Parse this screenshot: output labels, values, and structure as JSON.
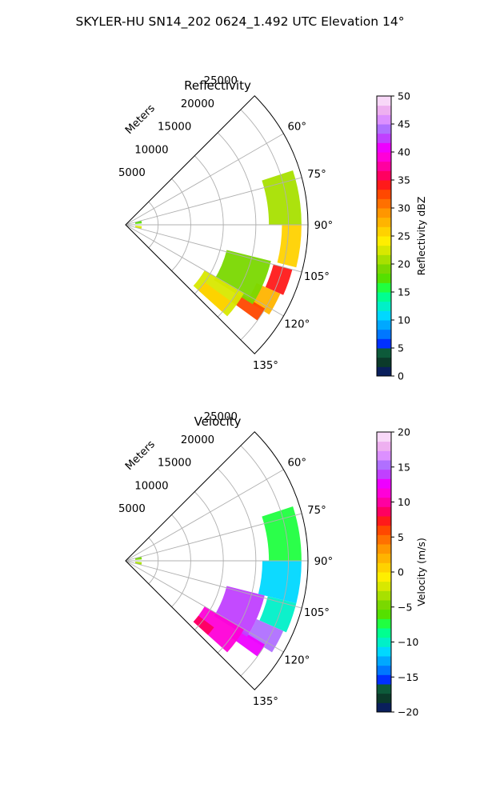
{
  "figure_title": "SKYLER-HU  SN14_202  0624_1.492 UTC Elevation 14°",
  "range_axis_label": "Meters",
  "chart_data": [
    {
      "type": "heatmap",
      "subtype": "radar-ppi-sector",
      "title": "Reflectivity",
      "theta_ticks": [
        60,
        75,
        90,
        105,
        120,
        135
      ],
      "theta_tick_labels": [
        "60°",
        "75°",
        "90°",
        "105°",
        "120°",
        "135°"
      ],
      "theta_range_deg": [
        45,
        135
      ],
      "r_ticks": [
        5000,
        10000,
        15000,
        20000,
        25000
      ],
      "r_tick_labels": [
        "5000",
        "10000",
        "15000",
        "20000",
        "25000"
      ],
      "r_max": 28000,
      "grid": true,
      "colorbar": {
        "label": "Reflectivity dBZ",
        "min": 0,
        "max": 50,
        "ticks": [
          0,
          5,
          10,
          15,
          20,
          25,
          30,
          35,
          40,
          45,
          50
        ],
        "tick_labels": [
          "0",
          "5",
          "10",
          "15",
          "20",
          "25",
          "30",
          "35",
          "40",
          "45",
          "50"
        ],
        "colors": [
          "#0a1f5c",
          "#0b3a2a",
          "#0d5a3a",
          "#0030ff",
          "#0077ff",
          "#00a8ff",
          "#00d8ff",
          "#00f0c8",
          "#00ff90",
          "#20ff40",
          "#55e000",
          "#7ad800",
          "#a8e000",
          "#d8e800",
          "#ffee00",
          "#ffd200",
          "#ffb400",
          "#ff9600",
          "#ff7000",
          "#ff4800",
          "#ff1a1a",
          "#ff0060",
          "#ff00a0",
          "#ff00d8",
          "#ee00ff",
          "#c040ff",
          "#b070ff",
          "#dc90ff",
          "#eeb0f0",
          "#f8d8f8"
        ]
      },
      "echo_regions": [
        {
          "r": [
            22000,
            27000
          ],
          "az": [
            72,
            90
          ],
          "dBZ": 20
        },
        {
          "r": [
            24000,
            27000
          ],
          "az": [
            90,
            104
          ],
          "dBZ": 25
        },
        {
          "r": [
            23500,
            26500
          ],
          "az": [
            105,
            114
          ],
          "dBZ": 34
        },
        {
          "r": [
            22000,
            26000
          ],
          "az": [
            114,
            122
          ],
          "dBZ": 28
        },
        {
          "r": [
            20000,
            25000
          ],
          "az": [
            121,
            126
          ],
          "dBZ": 32
        },
        {
          "r": [
            16000,
            23000
          ],
          "az": [
            104,
            122
          ],
          "dBZ": 19
        },
        {
          "r": [
            14000,
            21000
          ],
          "az": [
            120,
            132
          ],
          "dBZ": 22
        },
        {
          "r": [
            15000,
            20000
          ],
          "az": [
            126,
            132
          ],
          "dBZ": 26
        },
        {
          "r": [
            1500,
            2500
          ],
          "az": [
            75,
            85
          ],
          "dBZ": 18
        },
        {
          "r": [
            1500,
            2500
          ],
          "az": [
            95,
            105
          ],
          "dBZ": 22
        }
      ]
    },
    {
      "type": "heatmap",
      "subtype": "radar-ppi-sector",
      "title": "Velocity",
      "theta_ticks": [
        60,
        75,
        90,
        105,
        120,
        135
      ],
      "theta_tick_labels": [
        "60°",
        "75°",
        "90°",
        "105°",
        "120°",
        "135°"
      ],
      "theta_range_deg": [
        45,
        135
      ],
      "r_ticks": [
        5000,
        10000,
        15000,
        20000,
        25000
      ],
      "r_tick_labels": [
        "5000",
        "10000",
        "15000",
        "20000",
        "25000"
      ],
      "r_max": 28000,
      "grid": true,
      "colorbar": {
        "label": "Velocity (m/s)",
        "min": -20,
        "max": 20,
        "ticks": [
          -20,
          -15,
          -10,
          -5,
          0,
          5,
          10,
          15,
          20
        ],
        "tick_labels": [
          "−20",
          "−15",
          "−10",
          "−5",
          "0",
          "5",
          "10",
          "15",
          "20"
        ],
        "colors": [
          "#0a1f5c",
          "#0b3a2a",
          "#0d5a3a",
          "#0030ff",
          "#0077ff",
          "#00a8ff",
          "#00d8ff",
          "#00f0c8",
          "#00ff90",
          "#20ff40",
          "#55e000",
          "#7ad800",
          "#a8e000",
          "#d8e800",
          "#ffee00",
          "#ffd200",
          "#ffb400",
          "#ff9600",
          "#ff7000",
          "#ff4800",
          "#ff1a1a",
          "#ff0060",
          "#ff00a0",
          "#ff00d8",
          "#ee00ff",
          "#c040ff",
          "#b070ff",
          "#dc90ff",
          "#eeb0f0",
          "#f8d8f8"
        ]
      },
      "echo_regions": [
        {
          "r": [
            22000,
            27000
          ],
          "az": [
            72,
            90
          ],
          "velocity": -8
        },
        {
          "r": [
            21000,
            27000
          ],
          "az": [
            90,
            104
          ],
          "velocity": -11
        },
        {
          "r": [
            22500,
            27000
          ],
          "az": [
            104,
            114
          ],
          "velocity": -10
        },
        {
          "r": [
            22000,
            26500
          ],
          "az": [
            114,
            122
          ],
          "velocity": 15
        },
        {
          "r": [
            20000,
            25000
          ],
          "az": [
            121,
            126
          ],
          "velocity": 12
        },
        {
          "r": [
            16000,
            22000
          ],
          "az": [
            104,
            122
          ],
          "velocity": 14
        },
        {
          "r": [
            14000,
            21000
          ],
          "az": [
            120,
            132
          ],
          "velocity": 11
        },
        {
          "r": [
            14000,
            17000
          ],
          "az": [
            127,
            132
          ],
          "velocity": 9
        },
        {
          "r": [
            1500,
            2500
          ],
          "az": [
            75,
            85
          ],
          "velocity": -5
        },
        {
          "r": [
            1500,
            2500
          ],
          "az": [
            95,
            105
          ],
          "velocity": -4
        }
      ]
    }
  ]
}
